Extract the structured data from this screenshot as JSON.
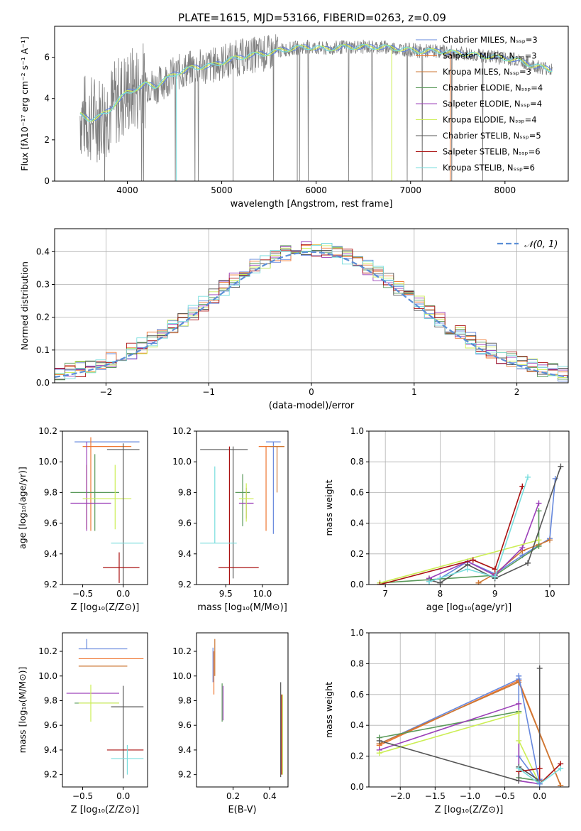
{
  "figure_title": "PLATE=1615, MJD=53166, FIBERID=0263, z=0.09",
  "series_colors": [
    "#6688dd",
    "#ee7733",
    "#cc7733",
    "#5a9a5a",
    "#9b3fb8",
    "#ccee55",
    "#555555",
    "#aa1111",
    "#77dddd"
  ],
  "chart_data": [
    {
      "id": "spectrum",
      "type": "line",
      "xlabel": "wavelength [Angstrom, rest frame]",
      "ylabel": "Flux [fλ10⁻¹⁷ erg cm⁻² s⁻¹ A⁻¹]",
      "xlim": [
        3230,
        8670
      ],
      "ylim": [
        0,
        7.5
      ],
      "xticks": [
        "4000",
        "5000",
        "6000",
        "7000",
        "8000"
      ],
      "yticks": [
        "0",
        "2",
        "4",
        "6"
      ],
      "legend_position": "upper-right",
      "legend": [
        "Chabrier MILES, Nₛₛₚ=3",
        "Salpeter MILES, Nₛₛₚ=3",
        "Kroupa MILES, Nₛₛₚ=3",
        "Chabrier ELODIE, Nₛₛₚ=4",
        "Salpeter ELODIE, Nₛₛₚ=4",
        "Kroupa ELODIE, Nₛₛₚ=4",
        "Chabrier STELIB, Nₛₛₚ=5",
        "Salpeter STELIB, Nₛₛₚ=6",
        "Kroupa STELIB, Nₛₛₚ=6"
      ],
      "data_envelope": {
        "x": [
          3500,
          3600,
          3700,
          3800,
          3900,
          4000,
          4100,
          4200,
          4300,
          4400,
          4500,
          4700,
          4900,
          5100,
          5300,
          5500,
          5700,
          5900,
          6100,
          6300,
          6500,
          6700,
          6900,
          7100,
          7300,
          7500,
          7700,
          7900,
          8100,
          8300,
          8500
        ],
        "y": [
          3.2,
          3.0,
          3.1,
          3.4,
          3.9,
          4.3,
          4.5,
          4.7,
          4.6,
          4.9,
          5.2,
          5.5,
          5.6,
          5.9,
          6.1,
          6.2,
          6.4,
          6.5,
          6.4,
          6.5,
          6.5,
          6.5,
          6.4,
          6.3,
          6.3,
          6.2,
          6.1,
          6.0,
          5.9,
          5.6,
          5.4
        ]
      }
    },
    {
      "id": "residuals",
      "type": "histogram",
      "xlabel": "(data-model)/error",
      "ylabel": "Normed distribution",
      "xlim": [
        -2.5,
        2.5
      ],
      "ylim": [
        0,
        0.47
      ],
      "xticks": [
        "−2",
        "−1",
        "0",
        "1",
        "2"
      ],
      "yticks": [
        "0.0",
        "0.1",
        "0.2",
        "0.3",
        "0.4"
      ],
      "legend_position": "upper-right",
      "legend": [
        "𝒩(0, 1)"
      ],
      "grid": true,
      "bin_width": 0.1
    },
    {
      "id": "age-vs-Z",
      "type": "errorbar",
      "xlabel": "Z [log₁₀(Z/Z⊙)]",
      "ylabel": "age  [log₁₀(age/yr)]",
      "xlim": [
        -0.75,
        0.3
      ],
      "ylim": [
        9.2,
        10.2
      ],
      "xticks": [
        "−0.5",
        "0.0"
      ],
      "yticks": [
        "9.2",
        "9.4",
        "9.6",
        "9.8",
        "10.0",
        "10.2"
      ],
      "points": [
        {
          "x": -0.1,
          "y": 10.13,
          "xe": [
            0.5,
            0.3
          ],
          "ye": [
            0,
            0
          ]
        },
        {
          "x": -0.4,
          "y": 10.1,
          "xe": [
            0.1,
            0.5
          ],
          "ye": [
            0.55,
            0.06
          ]
        },
        {
          "x": -0.45,
          "y": 9.8,
          "xe": [
            0,
            0
          ],
          "ye": [
            0.24,
            0.18
          ]
        },
        {
          "x": -0.35,
          "y": 9.8,
          "xe": [
            0.3,
            0.3
          ],
          "ye": [
            0.25,
            0.25
          ]
        },
        {
          "x": -0.45,
          "y": 9.73,
          "xe": [
            0.2,
            0.3
          ],
          "ye": [
            0.18,
            0.4
          ]
        },
        {
          "x": -0.1,
          "y": 9.76,
          "xe": [
            0.4,
            0.2
          ],
          "ye": [
            0.2,
            0.22
          ]
        },
        {
          "x": 0.0,
          "y": 10.08,
          "xe": [
            0.2,
            0.2
          ],
          "ye": [
            0.88,
            0.04
          ]
        },
        {
          "x": -0.05,
          "y": 9.31,
          "xe": [
            0.2,
            0.25
          ],
          "ye": [
            0.1,
            0.1
          ]
        },
        {
          "x": 0.05,
          "y": 9.47,
          "xe": [
            0.2,
            0.2
          ],
          "ye": [
            0,
            0
          ]
        }
      ]
    },
    {
      "id": "age-vs-mass",
      "type": "errorbar",
      "xlabel": "mass [log₁₀(M/M⊙)]",
      "ylabel": "",
      "xlim": [
        9.1,
        10.35
      ],
      "ylim": [
        9.2,
        10.2
      ],
      "xticks": [
        "9.5",
        "10.0"
      ],
      "yticks": [
        "9.2",
        "9.4",
        "9.6",
        "9.8",
        "10.0",
        "10.2"
      ],
      "points": [
        {
          "x": 10.15,
          "y": 10.13,
          "xe": [
            0.1,
            0.1
          ],
          "ye": [
            0.6,
            0
          ]
        },
        {
          "x": 10.05,
          "y": 10.1,
          "xe": [
            0.1,
            0.25
          ],
          "ye": [
            0.55,
            0
          ]
        },
        {
          "x": 10.2,
          "y": 10.1,
          "xe": [
            0.1,
            0.1
          ],
          "ye": [
            0.3,
            0
          ]
        },
        {
          "x": 9.73,
          "y": 9.8,
          "xe": [
            0.1,
            0.1
          ],
          "ye": [
            0.22,
            0.12
          ]
        },
        {
          "x": 9.78,
          "y": 9.73,
          "xe": [
            0.1,
            0.1
          ],
          "ye": [
            0.1,
            0.1
          ]
        },
        {
          "x": 9.78,
          "y": 9.76,
          "xe": [
            0.1,
            0.1
          ],
          "ye": [
            0.15,
            0.1
          ]
        },
        {
          "x": 9.6,
          "y": 10.08,
          "xe": [
            0.45,
            0.2
          ],
          "ye": [
            0.84,
            0.02
          ]
        },
        {
          "x": 9.55,
          "y": 9.31,
          "xe": [
            0.15,
            0.4
          ],
          "ye": [
            0.11,
            0.79
          ]
        },
        {
          "x": 9.35,
          "y": 9.47,
          "xe": [
            0.2,
            0.3
          ],
          "ye": [
            0,
            0.5
          ]
        }
      ]
    },
    {
      "id": "massweight-vs-age",
      "type": "line",
      "xlabel": "age  [log₁₀(age/yr)]",
      "ylabel": "mass weight",
      "xlim": [
        6.7,
        10.35
      ],
      "ylim": [
        0,
        1.0
      ],
      "xticks": [
        "7",
        "8",
        "9",
        "10"
      ],
      "yticks": [
        "0.0",
        "0.2",
        "0.4",
        "0.6",
        "0.8",
        "1.0"
      ],
      "grid": true,
      "series": [
        {
          "x": [
            7.8,
            8.0,
            8.5,
            9.0,
            9.5,
            10.0,
            10.1
          ],
          "y": [
            0.02,
            0.04,
            0.15,
            0.07,
            0.19,
            0.3,
            0.69
          ]
        },
        {
          "x": 8.7,
          "y": 0.01
        },
        {
          "x": [
            8.7,
            9.0,
            9.5,
            9.8,
            10.0
          ],
          "y": [
            0.01,
            0.07,
            0.22,
            0.26,
            0.29
          ]
        },
        {
          "x": [
            6.9,
            9.0,
            9.8,
            9.8
          ],
          "y": [
            0.01,
            0.06,
            0.25,
            0.48
          ]
        },
        {
          "x": [
            7.8,
            8.5,
            9.0,
            9.5,
            9.8
          ],
          "y": [
            0.04,
            0.15,
            0.06,
            0.24,
            0.53
          ]
        },
        {
          "x": [
            6.9,
            9.8
          ],
          "y": [
            0.01,
            0.29
          ]
        },
        {
          "x": [
            7.8,
            8.0,
            8.5,
            9.0,
            9.6,
            10.2
          ],
          "y": [
            0.03,
            0.01,
            0.13,
            0.04,
            0.14,
            0.77
          ]
        },
        {
          "x": [
            6.9,
            8.6,
            9.0,
            9.5
          ],
          "y": [
            0.0,
            0.16,
            0.1,
            0.64
          ]
        },
        {
          "x": [
            7.8,
            8.5,
            9.0,
            9.6
          ],
          "y": [
            0.02,
            0.1,
            0.05,
            0.7
          ]
        }
      ]
    },
    {
      "id": "mass-vs-Z",
      "type": "errorbar",
      "xlabel": "Z [log₁₀(Z/Z⊙)]",
      "ylabel": "mass [log₁₀(M/M⊙)]",
      "xlim": [
        -0.75,
        0.3
      ],
      "ylim": [
        9.1,
        10.35
      ],
      "xticks": [
        "−0.5",
        "0.0"
      ],
      "yticks": [
        "9.2",
        "9.4",
        "9.6",
        "9.8",
        "10.0",
        "10.2"
      ],
      "points": [
        {
          "x": -0.45,
          "y": 10.22,
          "xe": [
            0.1,
            0.5
          ],
          "ye": [
            0,
            0.08
          ]
        },
        {
          "x": -0.2,
          "y": 10.14,
          "xe": [
            0.35,
            0.45
          ],
          "ye": [
            0,
            0
          ]
        },
        {
          "x": -0.3,
          "y": 10.08,
          "xe": [
            0.25,
            0.35
          ],
          "ye": [
            0,
            0
          ]
        },
        {
          "x": -0.3,
          "y": 9.78,
          "xe": [
            0.3,
            0.25
          ],
          "ye": [
            0,
            0
          ]
        },
        {
          "x": -0.3,
          "y": 9.86,
          "xe": [
            0.4,
            0.25
          ],
          "ye": [
            0,
            0
          ]
        },
        {
          "x": -0.4,
          "y": 9.78,
          "xe": [
            0.15,
            0.35
          ],
          "ye": [
            0.15,
            0.15
          ]
        },
        {
          "x": 0.0,
          "y": 9.75,
          "xe": [
            0.15,
            0.25
          ],
          "ye": [
            0.58,
            0.17
          ]
        },
        {
          "x": -0.05,
          "y": 9.4,
          "xe": [
            0.15,
            0.3
          ],
          "ye": [
            0,
            0
          ]
        },
        {
          "x": 0.05,
          "y": 9.33,
          "xe": [
            0.2,
            0.2
          ],
          "ye": [
            0.13,
            0.11
          ]
        }
      ]
    },
    {
      "id": "mass-vs-ebv",
      "type": "errorbar",
      "xlabel": "E(B-V)",
      "ylabel": "",
      "xlim": [
        0.0,
        0.5
      ],
      "ylim": [
        9.1,
        10.35
      ],
      "xticks": [
        "0.2",
        "0.4"
      ],
      "yticks": [
        "9.2",
        "9.4",
        "9.6",
        "9.8",
        "10.0",
        "10.2"
      ],
      "points": [
        {
          "x": 0.09,
          "y": 10.1,
          "xe": [
            0,
            0
          ],
          "ye": [
            0.15,
            0.13
          ]
        },
        {
          "x": 0.095,
          "y": 10.1,
          "xe": [
            0,
            0
          ],
          "ye": [
            0.25,
            0.1
          ]
        },
        {
          "x": 0.1,
          "y": 10.15,
          "xe": [
            0,
            0
          ],
          "ye": [
            0.15,
            0.15
          ]
        },
        {
          "x": 0.14,
          "y": 9.78,
          "xe": [
            0,
            0
          ],
          "ye": [
            0.15,
            0.16
          ]
        },
        {
          "x": 0.145,
          "y": 9.78,
          "xe": [
            0,
            0
          ],
          "ye": [
            0.14,
            0.14
          ]
        },
        {
          "x": 0.47,
          "y": 9.55,
          "xe": [
            0,
            0
          ],
          "ye": [
            0.35,
            0.3
          ]
        },
        {
          "x": 0.46,
          "y": 9.55,
          "xe": [
            0,
            0
          ],
          "ye": [
            0.37,
            0.4
          ]
        },
        {
          "x": 0.465,
          "y": 9.6,
          "xe": [
            0,
            0
          ],
          "ye": [
            0.4,
            0.25
          ]
        }
      ]
    },
    {
      "id": "massweight-vs-Z",
      "type": "line",
      "xlabel": "Z [log₁₀(Z/Z⊙)]",
      "ylabel": "mass weight",
      "xlim": [
        -2.45,
        0.42
      ],
      "ylim": [
        0,
        1.0
      ],
      "xticks": [
        "−2.0",
        "−1.5",
        "−1.0",
        "−0.5",
        "0.0"
      ],
      "yticks": [
        "0.0",
        "0.2",
        "0.4",
        "0.6",
        "0.8",
        "1.0"
      ],
      "grid": true,
      "series": [
        {
          "x": [
            -2.3,
            -0.3,
            -0.3,
            0.0,
            0.0
          ],
          "y": [
            0.28,
            0.7,
            0.2,
            0.02,
            0.05
          ]
        },
        {
          "x": [
            -2.3,
            -0.3,
            0.3
          ],
          "y": [
            0.27,
            0.69,
            0.01
          ]
        },
        {
          "x": [
            -2.3,
            -0.3,
            0.3
          ],
          "y": [
            0.28,
            0.68,
            0.01
          ]
        },
        {
          "x": [
            -2.3,
            -0.3,
            -0.3,
            0.0
          ],
          "y": [
            0.32,
            0.49,
            0.06,
            0.04
          ]
        },
        {
          "x": [
            -2.3,
            -0.3,
            -0.3,
            0.0
          ],
          "y": [
            0.24,
            0.54,
            0.04,
            0.02
          ]
        },
        {
          "x": [
            -2.3,
            -0.3,
            -0.3,
            0.0
          ],
          "y": [
            0.22,
            0.48,
            0.3,
            0.02
          ]
        },
        {
          "x": [
            -2.3,
            -0.3,
            -0.3,
            0.0,
            0.0
          ],
          "y": [
            0.3,
            0.04,
            0.13,
            0.04,
            0.77
          ]
        },
        {
          "x": [
            -0.3,
            0.0,
            0.0,
            0.3
          ],
          "y": [
            0.1,
            0.12,
            0.02,
            0.15
          ]
        },
        {
          "x": [
            -0.3,
            0.0,
            0.3
          ],
          "y": [
            0.12,
            0.02,
            0.12
          ]
        },
        {
          "x": [
            -0.3,
            0.0
          ],
          "y": [
            0.72,
            0.02
          ]
        }
      ]
    }
  ]
}
